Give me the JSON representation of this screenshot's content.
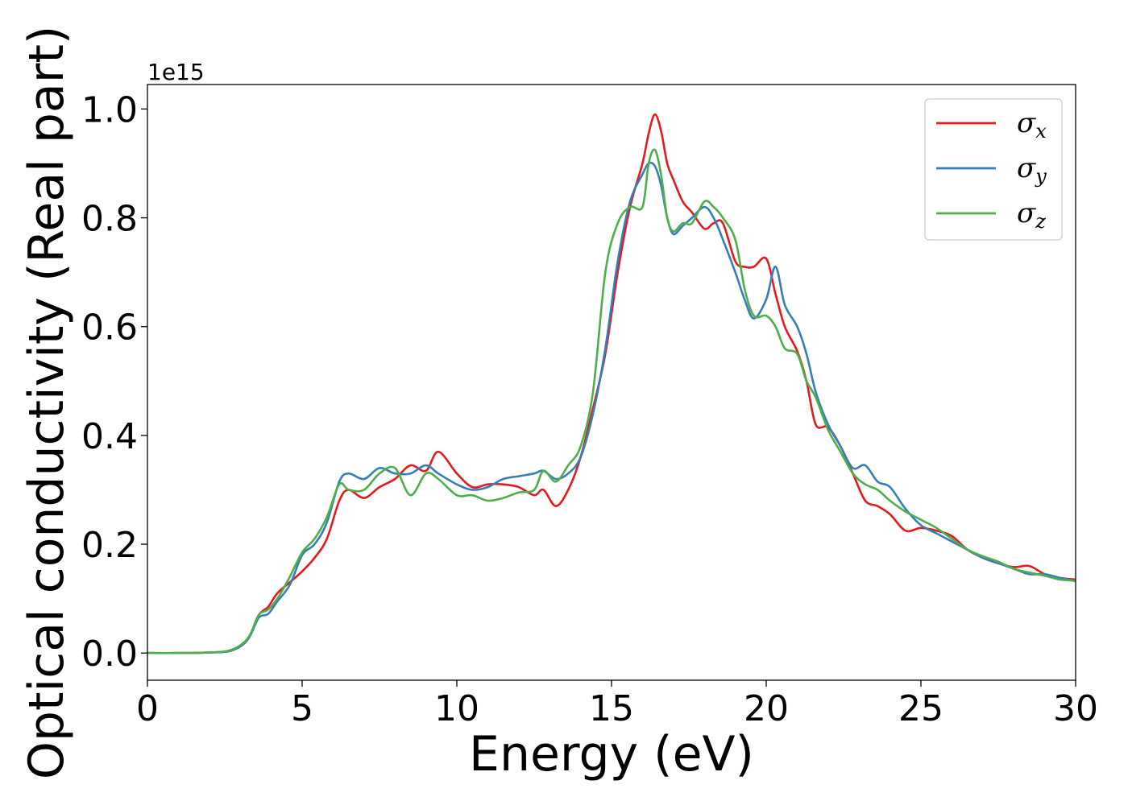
{
  "chart_data": {
    "type": "line",
    "xlabel": "Energy (eV)",
    "ylabel": "Optical conductivity (Real part)",
    "y_offset_label": "1e15",
    "xlim": [
      0,
      30
    ],
    "ylim": [
      -0.05,
      1.045
    ],
    "x_ticks": [
      0,
      5,
      10,
      15,
      20,
      25,
      30
    ],
    "x_tick_labels": [
      "0",
      "5",
      "10",
      "15",
      "20",
      "25",
      "30"
    ],
    "y_ticks": [
      0.0,
      0.2,
      0.4,
      0.6,
      0.8,
      1.0
    ],
    "y_tick_labels": [
      "0.0",
      "0.2",
      "0.4",
      "0.6",
      "0.8",
      "1.0"
    ],
    "grid": false,
    "legend_position": "top-right",
    "x": [
      0,
      1,
      2,
      2.6,
      3.0,
      3.3,
      3.6,
      3.9,
      4.2,
      4.6,
      5.0,
      5.4,
      5.8,
      6.2,
      6.5,
      7.0,
      7.5,
      8.0,
      8.5,
      9.0,
      9.4,
      10.0,
      10.5,
      11.0,
      11.5,
      12.0,
      12.5,
      12.8,
      13.2,
      13.6,
      14.0,
      14.4,
      14.8,
      15.2,
      15.6,
      16.0,
      16.2,
      16.4,
      16.6,
      16.8,
      17.0,
      17.3,
      17.6,
      18.0,
      18.3,
      18.6,
      19.0,
      19.3,
      19.6,
      20.0,
      20.3,
      20.6,
      21.0,
      21.3,
      21.6,
      22.0,
      22.4,
      22.8,
      23.2,
      23.6,
      24.0,
      24.5,
      25.0,
      25.5,
      26.0,
      26.5,
      27.0,
      27.5,
      28.0,
      28.5,
      29.0,
      29.5,
      30.0
    ],
    "series": [
      {
        "name": "σ_x",
        "color": "#e41a1c",
        "values": [
          0.0,
          0.0,
          0.001,
          0.003,
          0.012,
          0.03,
          0.07,
          0.085,
          0.11,
          0.13,
          0.15,
          0.175,
          0.21,
          0.28,
          0.3,
          0.285,
          0.305,
          0.32,
          0.345,
          0.335,
          0.37,
          0.33,
          0.305,
          0.31,
          0.31,
          0.305,
          0.29,
          0.3,
          0.27,
          0.3,
          0.36,
          0.45,
          0.55,
          0.7,
          0.82,
          0.9,
          0.955,
          0.99,
          0.96,
          0.9,
          0.87,
          0.83,
          0.81,
          0.78,
          0.79,
          0.79,
          0.72,
          0.71,
          0.71,
          0.725,
          0.66,
          0.6,
          0.555,
          0.5,
          0.42,
          0.415,
          0.38,
          0.33,
          0.28,
          0.27,
          0.255,
          0.225,
          0.23,
          0.225,
          0.215,
          0.19,
          0.175,
          0.165,
          0.158,
          0.16,
          0.145,
          0.138,
          0.135
        ]
      },
      {
        "name": "σ_y",
        "color": "#377eb8",
        "values": [
          0.0,
          0.0,
          0.001,
          0.003,
          0.012,
          0.03,
          0.065,
          0.072,
          0.095,
          0.125,
          0.18,
          0.2,
          0.24,
          0.315,
          0.33,
          0.32,
          0.34,
          0.33,
          0.33,
          0.345,
          0.33,
          0.31,
          0.3,
          0.305,
          0.32,
          0.325,
          0.33,
          0.335,
          0.32,
          0.33,
          0.36,
          0.44,
          0.56,
          0.72,
          0.83,
          0.88,
          0.9,
          0.895,
          0.86,
          0.8,
          0.77,
          0.785,
          0.8,
          0.82,
          0.8,
          0.76,
          0.7,
          0.65,
          0.615,
          0.65,
          0.71,
          0.64,
          0.6,
          0.55,
          0.48,
          0.42,
          0.38,
          0.34,
          0.345,
          0.315,
          0.305,
          0.265,
          0.235,
          0.22,
          0.205,
          0.19,
          0.175,
          0.165,
          0.155,
          0.145,
          0.145,
          0.138,
          0.132
        ]
      },
      {
        "name": "σ_z",
        "color": "#4daf4a",
        "values": [
          0.0,
          0.0,
          0.001,
          0.004,
          0.014,
          0.032,
          0.07,
          0.08,
          0.1,
          0.14,
          0.185,
          0.21,
          0.25,
          0.31,
          0.3,
          0.3,
          0.33,
          0.34,
          0.29,
          0.33,
          0.32,
          0.29,
          0.29,
          0.28,
          0.285,
          0.295,
          0.3,
          0.335,
          0.315,
          0.345,
          0.38,
          0.48,
          0.7,
          0.79,
          0.82,
          0.82,
          0.9,
          0.925,
          0.88,
          0.8,
          0.775,
          0.79,
          0.79,
          0.83,
          0.82,
          0.8,
          0.76,
          0.67,
          0.62,
          0.62,
          0.6,
          0.56,
          0.55,
          0.5,
          0.47,
          0.41,
          0.37,
          0.33,
          0.31,
          0.3,
          0.28,
          0.26,
          0.245,
          0.23,
          0.21,
          0.19,
          0.178,
          0.168,
          0.155,
          0.148,
          0.142,
          0.135,
          0.133
        ]
      }
    ]
  },
  "legend": [
    {
      "base": "σ",
      "sub": "x"
    },
    {
      "base": "σ",
      "sub": "y"
    },
    {
      "base": "σ",
      "sub": "z"
    }
  ]
}
